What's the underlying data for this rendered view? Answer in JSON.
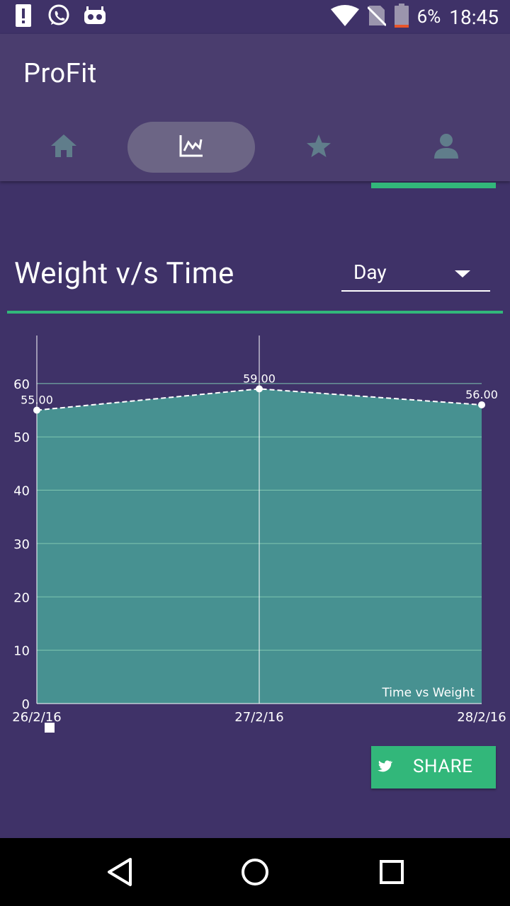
{
  "status_bar": {
    "battery_percent_text": "6%",
    "time": "18:45",
    "left_icons": [
      "alert-icon",
      "whatsapp-icon",
      "android-debug-icon"
    ],
    "right_icons": [
      "wifi-icon",
      "no-sim-icon",
      "battery-icon"
    ]
  },
  "app_bar": {
    "title": "ProFit",
    "tabs": [
      {
        "icon": "home-icon",
        "active": false
      },
      {
        "icon": "chart-icon",
        "active": true
      },
      {
        "icon": "star-icon",
        "active": false
      },
      {
        "icon": "profile-icon",
        "active": false
      }
    ]
  },
  "section": {
    "title": "Weight v/s Time",
    "dropdown_value": "Day"
  },
  "chart_data": {
    "type": "area",
    "categories": [
      "26/2/16",
      "27/2/16",
      "28/2/16"
    ],
    "series": [
      {
        "name": "Time vs Weight",
        "values": [
          55,
          59,
          56
        ]
      }
    ],
    "value_labels": [
      "55.00",
      "59.00",
      "56.00"
    ],
    "ylim": [
      0,
      69
    ],
    "yticks": [
      0,
      10,
      20,
      30,
      40,
      50,
      60
    ],
    "grid": true,
    "legend_position": "bottom-right",
    "colors": {
      "fill": "#479191",
      "line": "#ffffff",
      "grid": "#7fc7b0"
    }
  },
  "share_button": {
    "label": "SHARE",
    "icon": "twitter-icon"
  },
  "nav_bar": {
    "buttons": [
      "back-icon",
      "home-circle-icon",
      "recents-icon"
    ]
  },
  "colors": {
    "background": "#3f3268",
    "app_bar": "#4a3d6e",
    "accent": "#32b77a",
    "tab_icon": "#607d8b"
  }
}
